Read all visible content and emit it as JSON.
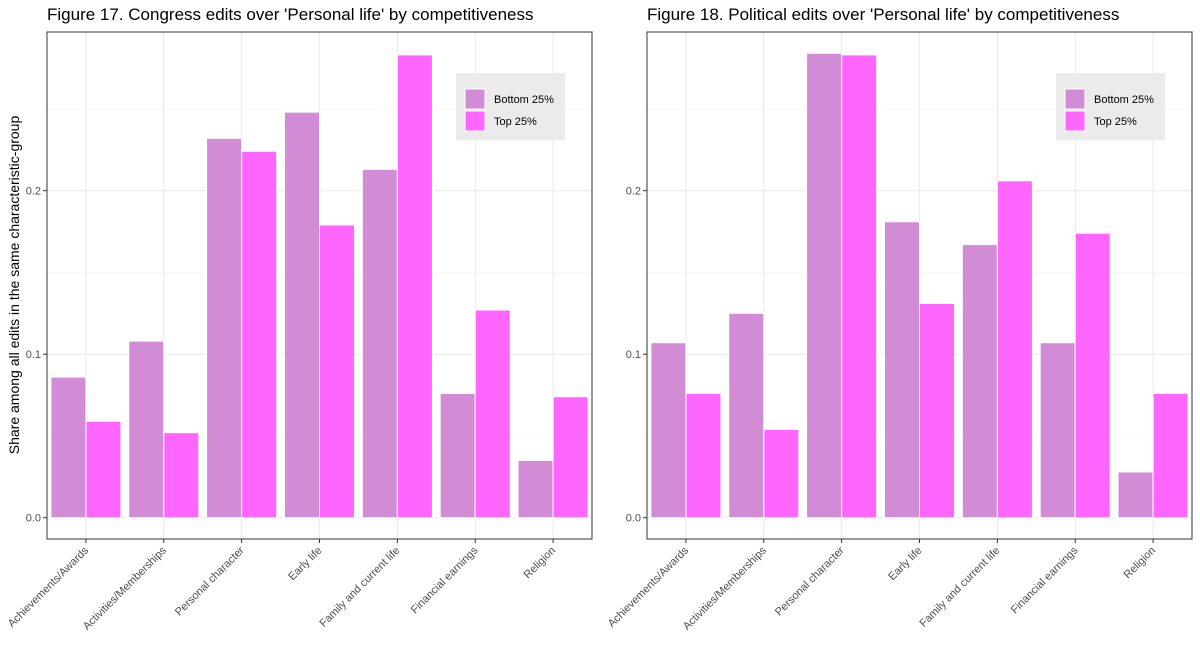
{
  "chart_data": [
    {
      "type": "bar",
      "title": "Figure 17. Congress edits over 'Personal life' by competitiveness",
      "xlabel": "",
      "ylabel": "Share among all edits in the same characteristic-group",
      "categories": [
        "Achievements/Awards",
        "Activities/Memberships",
        "Personal character",
        "Early life",
        "Family and current life",
        "Financial earnings",
        "Religion"
      ],
      "series": [
        {
          "name": "Bottom 25%",
          "color": "#d28cd6",
          "values": [
            0.086,
            0.108,
            0.232,
            0.248,
            0.213,
            0.076,
            0.035
          ]
        },
        {
          "name": "Top 25%",
          "color": "#fe66fe",
          "values": [
            0.059,
            0.052,
            0.224,
            0.179,
            0.283,
            0.127,
            0.074
          ]
        }
      ],
      "ylim": [
        -0.013,
        0.297
      ],
      "yticks": [
        "0.0",
        "0.1",
        "0.2"
      ],
      "ytick_values": [
        0,
        0.1,
        0.2
      ],
      "grid": true,
      "legend_position": "top-right"
    },
    {
      "type": "bar",
      "title": "Figure 18. Political edits over 'Personal life' by competitiveness",
      "xlabel": "",
      "ylabel": "",
      "categories": [
        "Achievements/Awards",
        "Activities/Memberships",
        "Personal character",
        "Early life",
        "Family and current life",
        "Financial earnings",
        "Religion"
      ],
      "series": [
        {
          "name": "Bottom 25%",
          "color": "#d28cd6",
          "values": [
            0.107,
            0.125,
            0.284,
            0.181,
            0.167,
            0.107,
            0.028
          ]
        },
        {
          "name": "Top 25%",
          "color": "#fe66fe",
          "values": [
            0.076,
            0.054,
            0.283,
            0.131,
            0.206,
            0.174,
            0.076
          ]
        }
      ],
      "ylim": [
        -0.013,
        0.297
      ],
      "yticks": [
        "0.0",
        "0.1",
        "0.2"
      ],
      "ytick_values": [
        0,
        0.1,
        0.2
      ],
      "grid": true,
      "legend_position": "top-right"
    }
  ]
}
